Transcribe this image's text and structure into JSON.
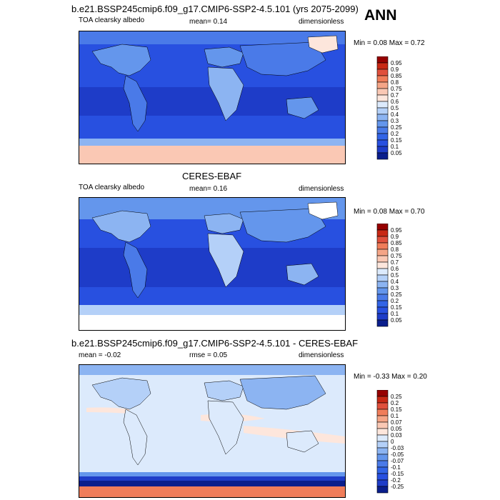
{
  "season": "ANN",
  "panels": [
    {
      "title": "b.e21.BSSP245cmip6.f09_g17.CMIP6-SSP2-4.5.101 (yrs 2075-2099)",
      "left_label": "TOA clearsky albedo",
      "mean_text": "mean=   0.14",
      "rmse_text": "",
      "units": "dimensionless",
      "minmax": "Min =   0.08 Max =   0.72",
      "levels": [
        "0.95",
        "0.9",
        "0.85",
        "0.8",
        "0.75",
        "0.7",
        "0.6",
        "0.5",
        "0.4",
        "0.3",
        "0.25",
        "0.2",
        "0.15",
        "0.1",
        "0.05"
      ]
    },
    {
      "title": "CERES-EBAF",
      "left_label": "TOA clearsky albedo",
      "mean_text": "mean=   0.16",
      "rmse_text": "",
      "units": "dimensionless",
      "minmax": "Min =   0.08 Max =   0.70",
      "levels": [
        "0.95",
        "0.9",
        "0.85",
        "0.8",
        "0.75",
        "0.7",
        "0.6",
        "0.5",
        "0.4",
        "0.3",
        "0.25",
        "0.2",
        "0.15",
        "0.1",
        "0.05"
      ]
    },
    {
      "title": "b.e21.BSSP245cmip6.f09_g17.CMIP6-SSP2-4.5.101 - CERES-EBAF",
      "left_label": "mean =   -0.02",
      "mean_text": "",
      "rmse_text": "rmse =   0.05",
      "units": "dimensionless",
      "minmax": "Min =   -0.33 Max =   0.20",
      "levels": [
        "0.25",
        "0.2",
        "0.15",
        "0.1",
        "0.07",
        "0.05",
        "0.03",
        "0",
        "-0.03",
        "-0.05",
        "-0.07",
        "-0.1",
        "-0.15",
        "-0.2",
        "-0.25"
      ]
    }
  ],
  "chart_data": [
    {
      "type": "heatmap",
      "title": "b.e21.BSSP245cmip6.f09_g17.CMIP6-SSP2-4.5.101 (yrs 2075-2099)",
      "variable": "TOA clearsky albedo",
      "units": "dimensionless",
      "mean": 0.14,
      "min": 0.08,
      "max": 0.72,
      "colorbar_levels": [
        0.05,
        0.1,
        0.15,
        0.2,
        0.25,
        0.3,
        0.4,
        0.5,
        0.6,
        0.7,
        0.75,
        0.8,
        0.85,
        0.9,
        0.95
      ],
      "colors": [
        "#0a1e8c",
        "#1e3cc8",
        "#2850e0",
        "#3264e6",
        "#4a7ae8",
        "#6496ec",
        "#8cb4f2",
        "#b4d0f8",
        "#dceafc",
        "#fde6dc",
        "#fac8b4",
        "#f5a587",
        "#f07d5a",
        "#e0503c",
        "#c82814",
        "#960000"
      ]
    },
    {
      "type": "heatmap",
      "title": "CERES-EBAF",
      "variable": "TOA clearsky albedo",
      "units": "dimensionless",
      "mean": 0.16,
      "min": 0.08,
      "max": 0.7,
      "colorbar_levels": [
        0.05,
        0.1,
        0.15,
        0.2,
        0.25,
        0.3,
        0.4,
        0.5,
        0.6,
        0.7,
        0.75,
        0.8,
        0.85,
        0.9,
        0.95
      ],
      "colors": [
        "#0a1e8c",
        "#1e3cc8",
        "#2850e0",
        "#3264e6",
        "#4a7ae8",
        "#6496ec",
        "#8cb4f2",
        "#b4d0f8",
        "#dceafc",
        "#fde6dc",
        "#fac8b4",
        "#f5a587",
        "#f07d5a",
        "#e0503c",
        "#c82814",
        "#960000"
      ]
    },
    {
      "type": "heatmap",
      "title": "b.e21.BSSP245cmip6.f09_g17.CMIP6-SSP2-4.5.101 - CERES-EBAF",
      "units": "dimensionless",
      "mean": -0.02,
      "rmse": 0.05,
      "min": -0.33,
      "max": 0.2,
      "colorbar_levels": [
        -0.25,
        -0.2,
        -0.15,
        -0.1,
        -0.07,
        -0.05,
        -0.03,
        0,
        0.03,
        0.05,
        0.07,
        0.1,
        0.15,
        0.2,
        0.25
      ],
      "colors": [
        "#0a1e8c",
        "#1e3cc8",
        "#2850e0",
        "#3264e6",
        "#4a7ae8",
        "#6496ec",
        "#8cb4f2",
        "#b4d0f8",
        "#dceafc",
        "#fde6dc",
        "#fac8b4",
        "#f5a587",
        "#f07d5a",
        "#e0503c",
        "#c82814",
        "#960000"
      ]
    }
  ]
}
